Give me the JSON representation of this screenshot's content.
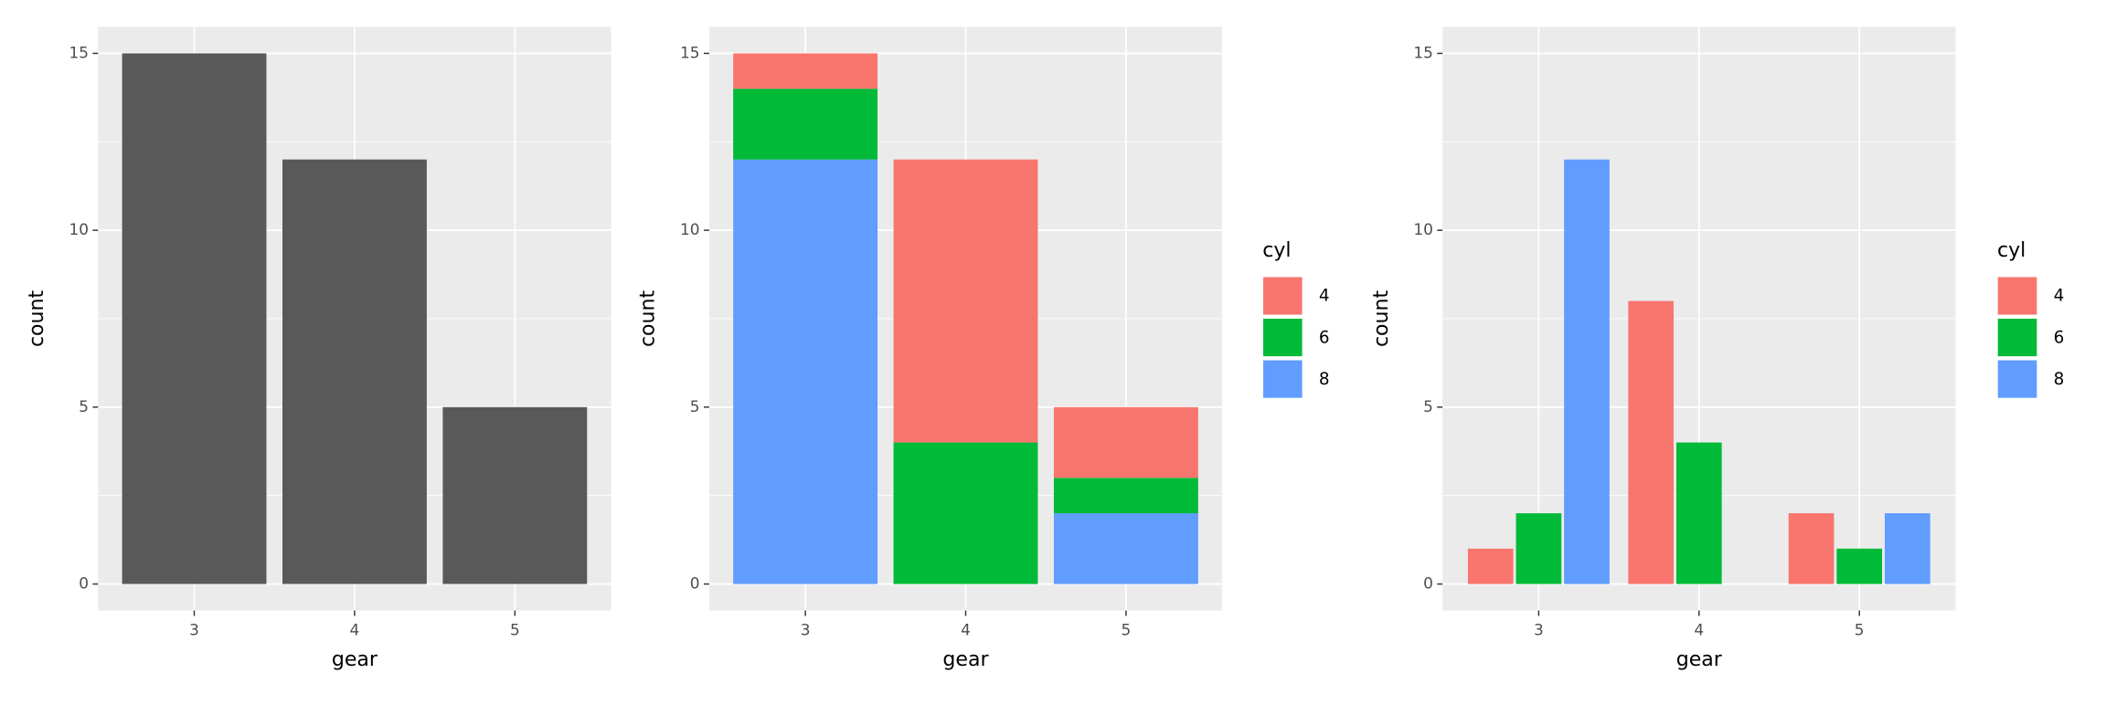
{
  "chart_data": [
    {
      "type": "bar",
      "x_label": "gear",
      "y_label": "count",
      "categories": [
        "3",
        "4",
        "5"
      ],
      "values": [
        15,
        12,
        5
      ],
      "color": "#595959",
      "ylim": [
        -0.75,
        15.75
      ],
      "yticks": [
        0,
        5,
        10,
        15
      ],
      "grid": true
    },
    {
      "type": "stacked_bar",
      "x_label": "gear",
      "y_label": "count",
      "legend_title": "cyl",
      "categories": [
        "3",
        "4",
        "5"
      ],
      "series": [
        {
          "name": "4",
          "color": "#F8766D",
          "values": [
            1,
            8,
            2
          ]
        },
        {
          "name": "6",
          "color": "#00BA38",
          "values": [
            2,
            4,
            1
          ]
        },
        {
          "name": "8",
          "color": "#619CFF",
          "values": [
            12,
            null,
            2
          ]
        }
      ],
      "ylim": [
        -0.75,
        15.75
      ],
      "yticks": [
        0,
        5,
        10,
        15
      ],
      "grid": true
    },
    {
      "type": "grouped_bar",
      "x_label": "gear",
      "y_label": "count",
      "legend_title": "cyl",
      "categories": [
        "3",
        "4",
        "5"
      ],
      "series": [
        {
          "name": "4",
          "color": "#F8766D",
          "values": [
            1,
            8,
            2
          ]
        },
        {
          "name": "6",
          "color": "#00BA38",
          "values": [
            2,
            4,
            1
          ]
        },
        {
          "name": "8",
          "color": "#619CFF",
          "values": [
            12,
            null,
            2
          ]
        }
      ],
      "ylim": [
        -0.75,
        15.75
      ],
      "yticks": [
        0,
        5,
        10,
        15
      ],
      "grid": true
    }
  ]
}
